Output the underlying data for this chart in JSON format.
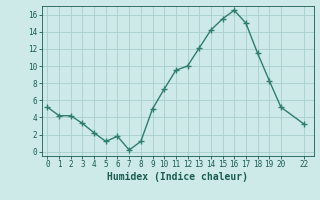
{
  "x": [
    0,
    1,
    2,
    3,
    4,
    5,
    6,
    7,
    8,
    9,
    10,
    11,
    12,
    13,
    14,
    15,
    16,
    17,
    18,
    19,
    20,
    22
  ],
  "y": [
    5.2,
    4.2,
    4.2,
    3.3,
    2.2,
    1.2,
    1.8,
    0.2,
    1.2,
    5.0,
    7.3,
    9.5,
    10.0,
    12.1,
    14.2,
    15.5,
    16.5,
    15.0,
    11.5,
    8.3,
    5.2,
    3.2
  ],
  "line_color": "#2e7d6e",
  "marker_color": "#2e7d6e",
  "bg_color": "#ceeae8",
  "grid_color": "#a8cecc",
  "xlabel": "Humidex (Indice chaleur)",
  "xlabel_color": "#1a5c50",
  "tick_color": "#1a5c50",
  "xlim": [
    -0.5,
    22.8
  ],
  "ylim": [
    -0.5,
    17.0
  ],
  "yticks": [
    0,
    2,
    4,
    6,
    8,
    10,
    12,
    14,
    16
  ],
  "xticks": [
    0,
    1,
    2,
    3,
    4,
    5,
    6,
    7,
    8,
    9,
    10,
    11,
    12,
    13,
    14,
    15,
    16,
    17,
    18,
    19,
    20,
    22
  ]
}
